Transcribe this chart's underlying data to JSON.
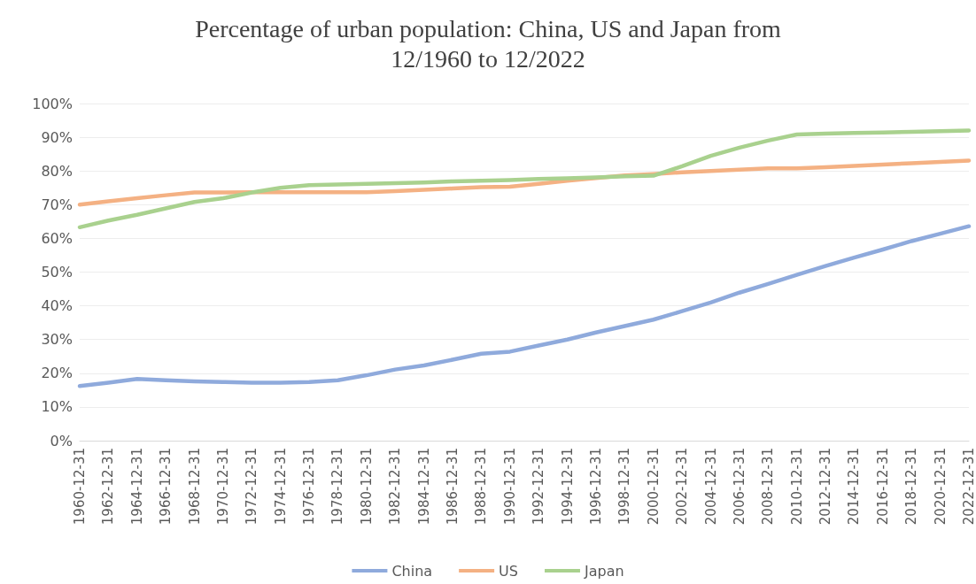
{
  "chart_data": {
    "type": "line",
    "title": "Percentage of urban population: China, US and Japan from\n12/1960 to 12/2022",
    "categories": [
      "1960-12-31",
      "1962-12-31",
      "1964-12-31",
      "1966-12-31",
      "1968-12-31",
      "1970-12-31",
      "1972-12-31",
      "1974-12-31",
      "1976-12-31",
      "1978-12-31",
      "1980-12-31",
      "1982-12-31",
      "1984-12-31",
      "1986-12-31",
      "1988-12-31",
      "1990-12-31",
      "1992-12-31",
      "1994-12-31",
      "1996-12-31",
      "1998-12-31",
      "2000-12-31",
      "2002-12-31",
      "2004-12-31",
      "2006-12-31",
      "2008-12-31",
      "2010-12-31",
      "2012-12-31",
      "2014-12-31",
      "2016-12-31",
      "2018-12-31",
      "2020-12-31",
      "2022-12-31"
    ],
    "series": [
      {
        "name": "China",
        "color": "#8faadc",
        "values": [
          16.2,
          17.2,
          18.3,
          17.9,
          17.6,
          17.4,
          17.2,
          17.2,
          17.4,
          17.9,
          19.4,
          21.1,
          22.3,
          24.0,
          25.8,
          26.4,
          28.2,
          30.0,
          32.1,
          34.0,
          35.9,
          38.4,
          41.0,
          43.9,
          46.5,
          49.2,
          51.8,
          54.3,
          56.7,
          59.2,
          61.4,
          63.6
        ]
      },
      {
        "name": "US",
        "color": "#f4b183",
        "values": [
          70.0,
          71.0,
          71.9,
          72.8,
          73.6,
          73.6,
          73.7,
          73.7,
          73.7,
          73.7,
          73.7,
          74.0,
          74.4,
          74.8,
          75.2,
          75.3,
          76.2,
          77.1,
          77.9,
          78.7,
          79.1,
          79.6,
          80.0,
          80.4,
          80.8,
          80.8,
          81.1,
          81.5,
          81.9,
          82.3,
          82.7,
          83.1
        ]
      },
      {
        "name": "Japan",
        "color": "#a9d18e",
        "values": [
          63.3,
          65.3,
          67.0,
          68.9,
          70.8,
          71.9,
          73.6,
          75.0,
          75.8,
          76.0,
          76.2,
          76.4,
          76.6,
          76.9,
          77.1,
          77.3,
          77.6,
          77.8,
          78.1,
          78.4,
          78.6,
          81.4,
          84.5,
          86.9,
          89.0,
          90.8,
          91.1,
          91.3,
          91.4,
          91.6,
          91.8,
          92.0
        ]
      }
    ],
    "ylim": [
      0,
      100
    ],
    "yticks": [
      {
        "value": 0,
        "label": "0%"
      },
      {
        "value": 10,
        "label": "10%"
      },
      {
        "value": 20,
        "label": "20%"
      },
      {
        "value": 30,
        "label": "30%"
      },
      {
        "value": 40,
        "label": "40%"
      },
      {
        "value": 50,
        "label": "50%"
      },
      {
        "value": 60,
        "label": "60%"
      },
      {
        "value": 70,
        "label": "70%"
      },
      {
        "value": 80,
        "label": "80%"
      },
      {
        "value": 90,
        "label": "90%"
      },
      {
        "value": 100,
        "label": "100%"
      }
    ],
    "grid": "y",
    "legend": "bottom",
    "marker": "none",
    "line_style": "solid"
  }
}
